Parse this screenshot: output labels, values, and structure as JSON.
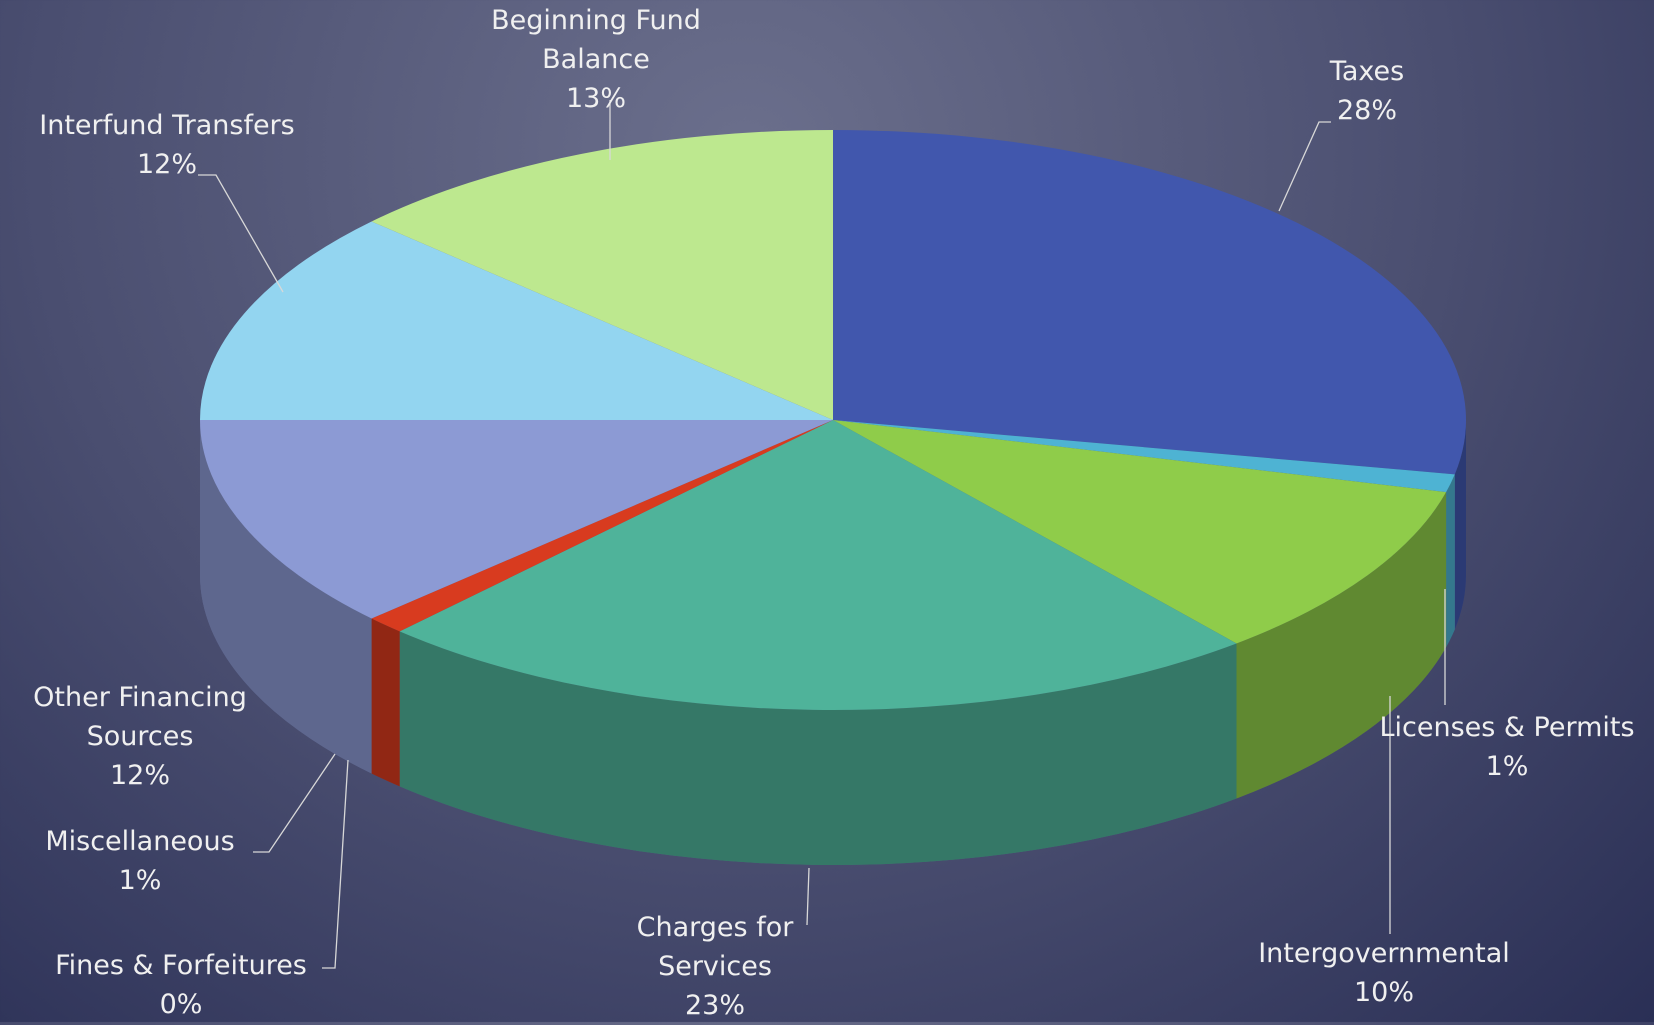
{
  "chart_data": {
    "type": "pie3d",
    "categories": [
      "Taxes",
      "Licenses & Permits",
      "Intergovernmental",
      "Charges for Services",
      "Fines & Forfeitures",
      "Miscellaneous",
      "Other Financing Sources",
      "Interfund Transfers",
      "Beginning Fund Balance"
    ],
    "values": [
      28,
      1,
      10,
      23,
      0,
      1,
      12,
      12,
      13
    ],
    "value_labels": [
      "28%",
      "1%",
      "10%",
      "23%",
      "0%",
      "1%",
      "12%",
      "12%",
      "13%"
    ],
    "colors": [
      "#4157ad",
      "#4eb3d3",
      "#8fcc4a",
      "#4fb39a",
      "#e07820",
      "#d83b1f",
      "#8c9ad4",
      "#93d5f0",
      "#bde88f"
    ]
  }
}
